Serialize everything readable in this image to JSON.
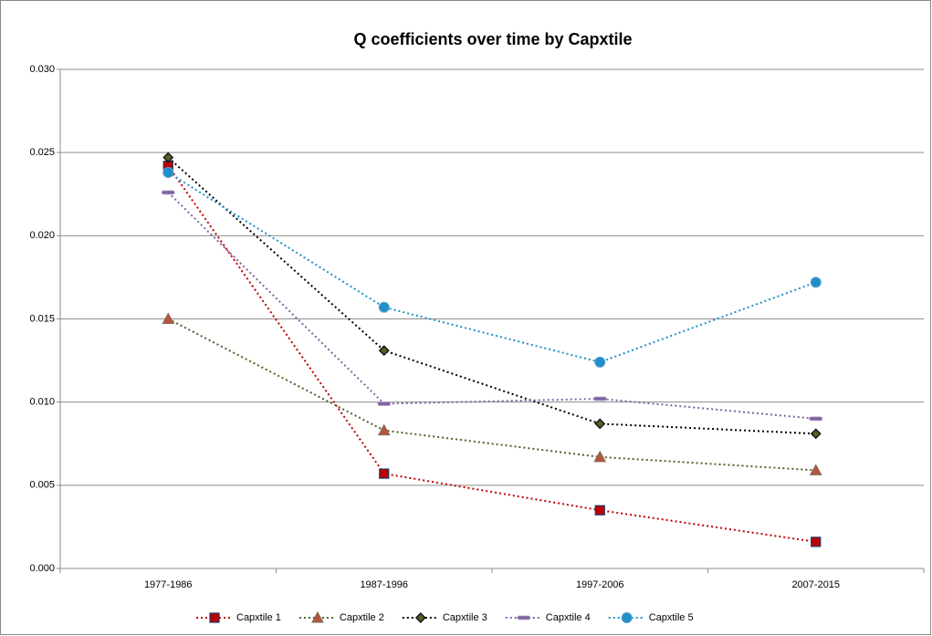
{
  "chart_data": {
    "type": "line",
    "title": "Q coefficients over time by Capxtile",
    "categories": [
      "1977-1986",
      "1987-1996",
      "1997-2006",
      "2007-2015"
    ],
    "series": [
      {
        "name": "Capxtile 1",
        "color": "#c00000",
        "marker": "square",
        "values": [
          0.0242,
          0.0057,
          0.0035,
          0.0016
        ]
      },
      {
        "name": "Capxtile 2",
        "color": "#4f6228",
        "marker": "triangle",
        "values": [
          0.015,
          0.0083,
          0.0067,
          0.0059
        ]
      },
      {
        "name": "Capxtile 3",
        "color": "#000000",
        "marker": "diamond",
        "values": [
          0.0247,
          0.0131,
          0.0087,
          0.0081
        ]
      },
      {
        "name": "Capxtile 4",
        "color": "#8064a2",
        "marker": "dash",
        "values": [
          0.0226,
          0.0099,
          0.0102,
          0.009
        ]
      },
      {
        "name": "Capxtile 5",
        "color": "#1f8fc8",
        "marker": "circle",
        "values": [
          0.0238,
          0.0157,
          0.0124,
          0.0172
        ]
      }
    ],
    "ylim": [
      0,
      0.03
    ],
    "yticks": [
      {
        "value": 0,
        "label": "0.000"
      },
      {
        "value": 0.005,
        "label": "0.005"
      },
      {
        "value": 0.01,
        "label": "0.010"
      },
      {
        "value": 0.015,
        "label": "0.015"
      },
      {
        "value": 0.02,
        "label": "0.020"
      },
      {
        "value": 0.025,
        "label": "0.025"
      },
      {
        "value": 0.03,
        "label": "0.030"
      }
    ],
    "grid": true,
    "legend": "bottom"
  }
}
